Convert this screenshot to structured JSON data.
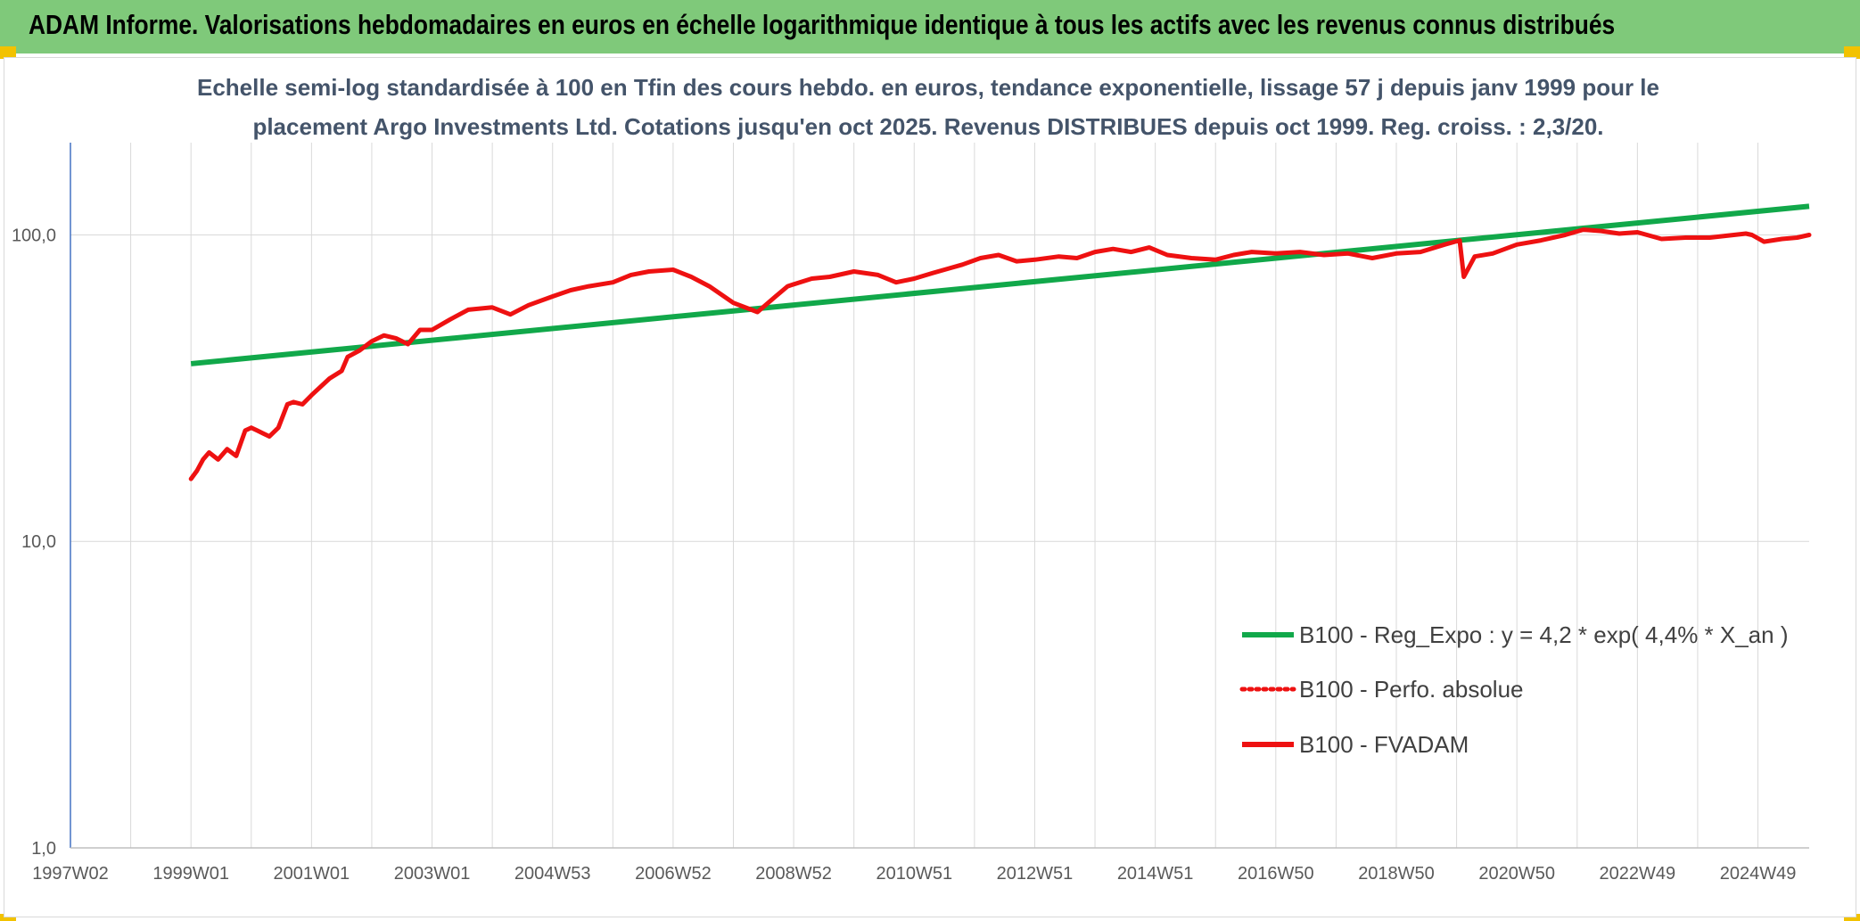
{
  "header": {
    "title": "ADAM Informe. Valorisations hebdomadaires en euros en échelle logarithmique identique à tous les actifs avec les revenus connus distribués"
  },
  "colors": {
    "header_bg": "#7fc97a",
    "trend": "#11a84a",
    "perf": "#ee1111",
    "fvadam": "#ee1111",
    "grid": "#d9d9d9",
    "axis": "#4472c4"
  },
  "chart_data": {
    "type": "line",
    "title_lines": [
      "Echelle semi-log standardisée à 100 en Tfin des cours hebdo. en euros, tendance exponentielle, lissage 57 j depuis janv 1999 pour le",
      "placement Argo Investments Ltd. Cotations jusqu'en oct 2025. Revenus DISTRIBUES depuis oct 1999. Reg. croiss. : 2,3/20."
    ],
    "y_scale": "log",
    "ylim": [
      1,
      200
    ],
    "xlim": [
      1997.0,
      2025.85
    ],
    "y_ticks": [
      {
        "value": 1,
        "label": "1,0"
      },
      {
        "value": 10,
        "label": "10,0"
      },
      {
        "value": 100,
        "label": "100,0"
      }
    ],
    "x_ticks": [
      {
        "value": 1997.0,
        "label": "1997W02"
      },
      {
        "value": 1999.0,
        "label": "1999W01"
      },
      {
        "value": 2001.0,
        "label": "2001W01"
      },
      {
        "value": 2003.0,
        "label": "2003W01"
      },
      {
        "value": 2005.0,
        "label": "2004W53"
      },
      {
        "value": 2007.0,
        "label": "2006W52"
      },
      {
        "value": 2009.0,
        "label": "2008W52"
      },
      {
        "value": 2011.0,
        "label": "2010W51"
      },
      {
        "value": 2013.0,
        "label": "2012W51"
      },
      {
        "value": 2015.0,
        "label": "2014W51"
      },
      {
        "value": 2017.0,
        "label": "2016W50"
      },
      {
        "value": 2019.0,
        "label": "2018W50"
      },
      {
        "value": 2021.0,
        "label": "2020W50"
      },
      {
        "value": 2023.0,
        "label": "2022W49"
      },
      {
        "value": 2025.0,
        "label": "2024W49"
      }
    ],
    "legend": [
      {
        "label": "B100 - Reg_Expo : y = 4,2 * exp( 4,4% *  X_an )",
        "style": "solid",
        "series": "trend"
      },
      {
        "label": "B100 - Perfo. absolue",
        "style": "dotted",
        "series": "perf"
      },
      {
        "label": "B100 - FVADAM",
        "style": "solid",
        "series": "fvadam"
      }
    ],
    "series": [
      {
        "name": "B100 - Reg_Expo",
        "x": [
          1999.0,
          2025.85
        ],
        "y": [
          38,
          124
        ]
      },
      {
        "name": "B100 - FVADAM",
        "x": [
          1999.0,
          1999.1,
          1999.2,
          1999.3,
          1999.45,
          1999.6,
          1999.75,
          1999.9,
          2000.0,
          2000.1,
          2000.2,
          2000.3,
          2000.45,
          2000.6,
          2000.7,
          2000.85,
          2001.0,
          2001.3,
          2001.5,
          2001.6,
          2001.8,
          2002.0,
          2002.2,
          2002.4,
          2002.6,
          2002.8,
          2003.0,
          2003.3,
          2003.6,
          2004.0,
          2004.3,
          2004.6,
          2005.0,
          2005.3,
          2005.6,
          2006.0,
          2006.3,
          2006.6,
          2007.0,
          2007.3,
          2007.6,
          2008.0,
          2008.4,
          2008.7,
          2008.9,
          2009.1,
          2009.3,
          2009.6,
          2010.0,
          2010.4,
          2010.7,
          2011.0,
          2011.3,
          2011.6,
          2011.8,
          2012.1,
          2012.4,
          2012.7,
          2013.0,
          2013.4,
          2013.7,
          2014.0,
          2014.3,
          2014.6,
          2014.9,
          2015.2,
          2015.6,
          2016.0,
          2016.3,
          2016.6,
          2017.0,
          2017.4,
          2017.8,
          2018.2,
          2018.6,
          2019.0,
          2019.4,
          2019.8,
          2020.05,
          2020.12,
          2020.3,
          2020.6,
          2021.0,
          2021.4,
          2021.8,
          2022.1,
          2022.4,
          2022.7,
          2023.0,
          2023.4,
          2023.8,
          2024.2,
          2024.6,
          2024.8,
          2024.9,
          2025.1,
          2025.4,
          2025.65,
          2025.85
        ],
        "y": [
          16,
          17,
          18.5,
          19.5,
          18.5,
          20,
          19,
          23,
          23.5,
          23,
          22.5,
          22,
          23.5,
          28,
          28.5,
          28,
          30,
          34,
          36,
          40,
          42,
          45,
          47,
          46,
          44,
          49,
          49,
          53,
          57,
          58,
          55,
          59,
          63,
          66,
          68,
          70,
          74,
          76,
          77,
          73,
          68,
          60,
          56,
          63,
          68,
          70,
          72,
          73,
          76,
          74,
          70,
          72,
          75,
          78,
          80,
          84,
          86,
          82,
          83,
          85,
          84,
          88,
          90,
          88,
          91,
          86,
          84,
          83,
          86,
          88,
          87,
          88,
          86,
          87,
          84,
          87,
          88,
          93,
          96,
          73,
          85,
          87,
          93,
          96,
          100,
          104,
          103,
          101,
          102,
          97,
          98,
          98,
          100,
          101,
          100,
          95,
          97,
          98,
          100
        ]
      }
    ]
  }
}
